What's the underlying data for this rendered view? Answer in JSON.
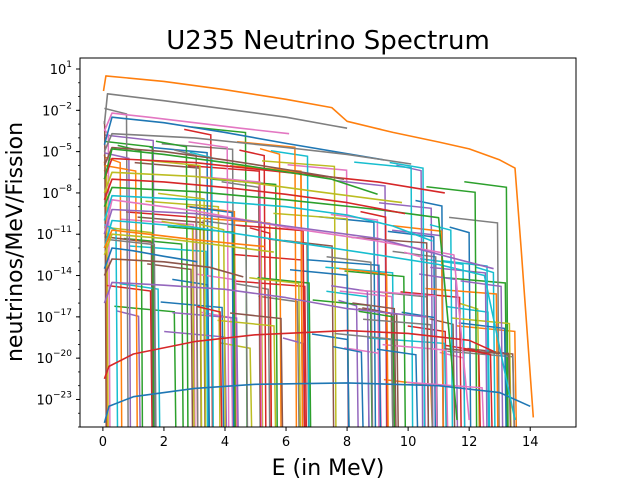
{
  "chart_data": {
    "type": "line",
    "title": "U235 Neutrino Spectrum",
    "xlabel": "E (in MeV)",
    "ylabel": "neutrinos/MeV/Fission",
    "xlim": [
      -0.75,
      15.5
    ],
    "ylim_log10": [
      -25,
      1.8
    ],
    "yscale": "log",
    "x_ticks": [
      0,
      2,
      4,
      6,
      8,
      10,
      12,
      14
    ],
    "y_ticks": [
      {
        "base": "10",
        "exp": "1",
        "value_log10": 1
      },
      {
        "base": "10",
        "exp": "−2",
        "value_log10": -2
      },
      {
        "base": "10",
        "exp": "−5",
        "value_log10": -5
      },
      {
        "base": "10",
        "exp": "−8",
        "value_log10": -8
      },
      {
        "base": "10",
        "exp": "−11",
        "value_log10": -11
      },
      {
        "base": "10",
        "exp": "−14",
        "value_log10": -14
      },
      {
        "base": "10",
        "exp": "−17",
        "value_log10": -17
      },
      {
        "base": "10",
        "exp": "−20",
        "value_log10": -20
      },
      {
        "base": "10",
        "exp": "−23",
        "value_log10": -23
      }
    ],
    "grid": false,
    "legend": "none",
    "colors": [
      "#1f77b4",
      "#ff7f0e",
      "#2ca02c",
      "#d62728",
      "#9467bd",
      "#8c564b",
      "#e377c2",
      "#7f7f7f",
      "#bcbd22",
      "#17becf"
    ],
    "series": [
      {
        "color": "#ff7f0e",
        "x": [
          0.02,
          0.1,
          2,
          4,
          6,
          7.5,
          8,
          9.5,
          11,
          12,
          13,
          13.5,
          13.7,
          14.1
        ],
        "log10y": [
          -0.6,
          0.5,
          0.1,
          -0.5,
          -1.2,
          -1.8,
          -2.8,
          -3.6,
          -4.3,
          -4.8,
          -5.6,
          -6.2,
          -12,
          -24.3
        ]
      },
      {
        "color": "#7f7f7f",
        "x": [
          0.05,
          0.15,
          2,
          4,
          6,
          7.5,
          8.0
        ],
        "log10y": [
          -3,
          -0.8,
          -1.3,
          -1.9,
          -2.5,
          -3.1,
          -3.3
        ]
      },
      {
        "color": "#1f77b4",
        "x": [
          0.05,
          0.2,
          1,
          3,
          5,
          8,
          11,
          13,
          14.0
        ],
        "log10y": [
          -24.7,
          -23.5,
          -22.8,
          -22.2,
          -21.9,
          -21.8,
          -22.0,
          -22.5,
          -23.5
        ]
      },
      {
        "color": "#d62728",
        "x": [
          0.05,
          0.2,
          1,
          3,
          5,
          8,
          10,
          12,
          12.8
        ],
        "log10y": [
          -21.5,
          -20.6,
          -19.7,
          -18.8,
          -18.3,
          -18.0,
          -18.2,
          -18.7,
          -19.5
        ]
      },
      {
        "color": "#17becf",
        "x": [
          0.05,
          0.3,
          3,
          6,
          9,
          11,
          12.5,
          13.5
        ],
        "log10y": [
          -12,
          -10,
          -10.5,
          -11.5,
          -12.5,
          -13.2,
          -14,
          -24.5
        ]
      },
      {
        "color": "#e377c2",
        "x": [
          0.05,
          0.3,
          3,
          6,
          9,
          11.5,
          12.0
        ],
        "log10y": [
          -11,
          -8.5,
          -9.3,
          -10.5,
          -11.5,
          -12.5,
          -24.5
        ]
      },
      {
        "color": "#9467bd",
        "x": [
          0.05,
          0.3,
          2,
          4,
          6,
          8,
          10.6
        ],
        "log10y": [
          -16,
          -14.5,
          -14.7,
          -15.0,
          -15.6,
          -16.4,
          -17.0
        ]
      },
      {
        "color": "#8c564b",
        "x": [
          0.05,
          0.3,
          2,
          3.5,
          4.6
        ],
        "log10y": [
          -14,
          -12.8,
          -13.0,
          -13.4,
          -14.1
        ]
      },
      {
        "color": "#2ca02c",
        "x": [
          0.05,
          0.3,
          3,
          6,
          9,
          11,
          11.6
        ],
        "log10y": [
          -9,
          -7.6,
          -7.9,
          -8.5,
          -9.2,
          -9.8,
          -24.5
        ]
      },
      {
        "color": "#bcbd22",
        "x": [
          0.05,
          0.3,
          3,
          5,
          7,
          9.8
        ],
        "log10y": [
          -8,
          -6.5,
          -6.8,
          -7.3,
          -7.9,
          -8.7
        ]
      },
      {
        "color": "#1f77b4",
        "x": [
          0.05,
          0.3,
          2,
          4,
          6,
          9.2
        ],
        "log10y": [
          -4.5,
          -2.5,
          -2.9,
          -3.6,
          -4.4,
          -5.6
        ]
      },
      {
        "color": "#d62728",
        "x": [
          0.05,
          0.3,
          3,
          6,
          9,
          11.2
        ],
        "log10y": [
          -7,
          -5.5,
          -5.8,
          -6.5,
          -7.2,
          -8.0
        ]
      },
      {
        "color": "#9467bd",
        "x": [
          0.05,
          0.3,
          3,
          6,
          9,
          12.8
        ],
        "log10y": [
          -11,
          -9.2,
          -9.5,
          -10.4,
          -11.3,
          -13.5
        ]
      },
      {
        "color": "#ff7f0e",
        "x": [
          0.05,
          0.3,
          1.5,
          3,
          5.3
        ],
        "log10y": [
          -12,
          -10.7,
          -11.0,
          -11.4,
          -11.9
        ]
      },
      {
        "color": "#8c564b",
        "x": [
          0.05,
          0.3,
          2,
          4,
          6,
          7.9
        ],
        "log10y": [
          -6,
          -4.7,
          -5.0,
          -5.6,
          -6.3,
          -7.0
        ]
      },
      {
        "color": "#17becf",
        "x": [
          0.05,
          0.3,
          3,
          6,
          8,
          9.5,
          10.8
        ],
        "log10y": [
          -10,
          -8.2,
          -8.5,
          -9.0,
          -9.6,
          -10.4,
          -11.5
        ]
      },
      {
        "color": "#2ca02c",
        "x": [
          0.05,
          0.3,
          2,
          4,
          5.5,
          7.5,
          9.0
        ],
        "log10y": [
          -7,
          -4.8,
          -5.2,
          -5.8,
          -6.3,
          -7.0,
          -8.1
        ]
      },
      {
        "color": "#e377c2",
        "x": [
          0.05,
          0.3,
          1.5,
          3,
          4.5,
          6.1
        ],
        "log10y": [
          -3.5,
          -2.2,
          -2.5,
          -2.9,
          -3.3,
          -3.7
        ]
      },
      {
        "color": "#7f7f7f",
        "x": [
          0.05,
          0.3,
          3,
          6,
          8,
          10.1
        ],
        "log10y": [
          -5,
          -3.7,
          -4.0,
          -4.7,
          -5.2,
          -5.9
        ]
      },
      {
        "color": "#bcbd22",
        "x": [
          0.05,
          0.3,
          2,
          3.5,
          5.6
        ],
        "log10y": [
          -12.5,
          -11.0,
          -11.3,
          -11.7,
          -12.3
        ]
      },
      {
        "color": "#1f77b4",
        "x": [
          0.05,
          0.3,
          1,
          2,
          3.1
        ],
        "log10y": [
          -13.5,
          -12.0,
          -12.2,
          -12.6,
          -13.0
        ]
      },
      {
        "color": "#d62728",
        "x": [
          0.05,
          0.3,
          2,
          4,
          6,
          8,
          9.9
        ],
        "log10y": [
          -8.5,
          -7.0,
          -7.2,
          -7.6,
          -8.1,
          -8.7,
          -9.5
        ]
      }
    ],
    "cutoff_lines": {
      "count": 150,
      "x_range": [
        0.05,
        13.6
      ],
      "ceiling_log10_at_zero": -0.5,
      "ceiling_slope_per_mev": -0.42
    }
  }
}
